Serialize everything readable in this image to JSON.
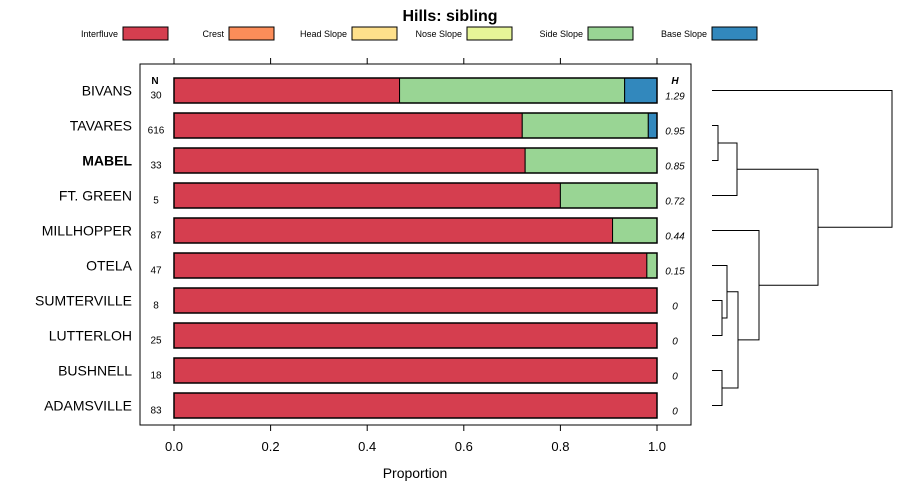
{
  "chart_data": {
    "type": "bar",
    "orientation": "horizontal",
    "stacked": true,
    "title": "Hills: sibling",
    "xlabel": "Proportion",
    "xlim": [
      0,
      1
    ],
    "xticks": [
      "0.0",
      "0.2",
      "0.4",
      "0.6",
      "0.8",
      "1.0"
    ],
    "n_header": "N",
    "h_header": "H",
    "highlight_category": "MABEL",
    "legend_position": "top",
    "categories": [
      "BIVANS",
      "TAVARES",
      "MABEL",
      "FT. GREEN",
      "MILLHOPPER",
      "OTELA",
      "SUMTERVILLE",
      "LUTTERLOH",
      "BUSHNELL",
      "ADAMSVILLE"
    ],
    "n_values": [
      "30",
      "616",
      "33",
      "5",
      "87",
      "47",
      "8",
      "25",
      "18",
      "83"
    ],
    "h_values": [
      "1.29",
      "0.95",
      "0.85",
      "0.72",
      "0.44",
      "0.15",
      "0",
      "0",
      "0",
      "0"
    ],
    "series": [
      {
        "name": "Interfluve",
        "color": "#D53E4F",
        "values": [
          0.467,
          0.721,
          0.727,
          0.8,
          0.908,
          0.979,
          1,
          1,
          1,
          1
        ]
      },
      {
        "name": "Crest",
        "color": "#FC8D59",
        "values": [
          0,
          0,
          0,
          0,
          0,
          0,
          0,
          0,
          0,
          0
        ]
      },
      {
        "name": "Head Slope",
        "color": "#FEE08B",
        "values": [
          0,
          0,
          0,
          0,
          0,
          0,
          0,
          0,
          0,
          0
        ]
      },
      {
        "name": "Nose Slope",
        "color": "#E6F598",
        "values": [
          0,
          0,
          0,
          0,
          0,
          0,
          0,
          0,
          0,
          0
        ]
      },
      {
        "name": "Side Slope",
        "color": "#99D594",
        "values": [
          0.466,
          0.261,
          0.273,
          0.2,
          0.092,
          0.021,
          0,
          0,
          0,
          0
        ]
      },
      {
        "name": "Base Slope",
        "color": "#3288BD",
        "values": [
          0.067,
          0.018,
          0,
          0,
          0,
          0,
          0,
          0,
          0,
          0
        ]
      }
    ],
    "dendrogram": {
      "description": "hierarchical clustering of categories (merge order)",
      "merges": [
        {
          "id": "m1",
          "left": "TAVARES",
          "right": "MABEL"
        },
        {
          "id": "m2",
          "left": "m1",
          "right": "FT. GREEN"
        },
        {
          "id": "m3",
          "left": "SUMTERVILLE",
          "right": "LUTTERLOH"
        },
        {
          "id": "m4",
          "left": "OTELA",
          "right": "m3"
        },
        {
          "id": "m5",
          "left": "BUSHNELL",
          "right": "ADAMSVILLE"
        },
        {
          "id": "m6",
          "left": "m4",
          "right": "m5"
        },
        {
          "id": "m7",
          "left": "MILLHOPPER",
          "right": "m6"
        },
        {
          "id": "m8",
          "left": "m2",
          "right": "m7"
        },
        {
          "id": "m9",
          "left": "BIVANS",
          "right": "m8"
        }
      ]
    }
  }
}
